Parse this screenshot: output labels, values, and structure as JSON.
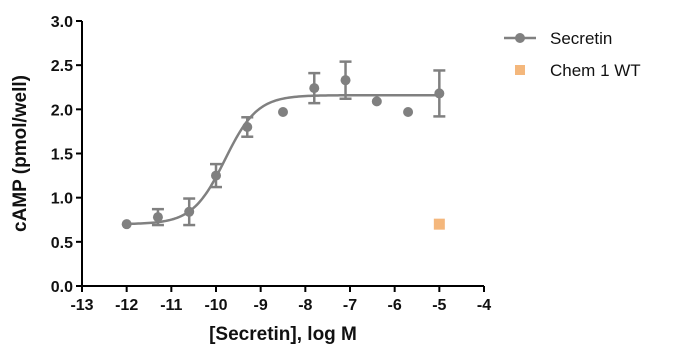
{
  "chart_data": {
    "type": "scatter",
    "title": "",
    "xlabel": "[Secretin], log M",
    "ylabel": "cAMP (pmol/well)",
    "xlim": [
      -13,
      -4
    ],
    "ylim": [
      0.0,
      3.0
    ],
    "x_ticks": [
      -13,
      -12,
      -11,
      -10,
      -9,
      -8,
      -7,
      -6,
      -5,
      -4
    ],
    "x_tick_labels": [
      "-13",
      "-12",
      "-11",
      "-10",
      "-9",
      "-8",
      "-7",
      "-6",
      "-5",
      "-4"
    ],
    "y_ticks": [
      0.0,
      0.5,
      1.0,
      1.5,
      2.0,
      2.5,
      3.0
    ],
    "y_tick_labels": [
      "0.0",
      "0.5",
      "1.0",
      "1.5",
      "2.0",
      "2.5",
      "3.0"
    ],
    "grid": false,
    "legend_position": "top-right",
    "series": [
      {
        "name": "Secretin",
        "marker": "circle",
        "color": "#808080",
        "fit": "sigmoidal dose-response",
        "x": [
          -12,
          -11.3,
          -10.6,
          -10,
          -9.3,
          -8.5,
          -7.8,
          -7.1,
          -6.4,
          -5.7,
          -5
        ],
        "y": [
          0.7,
          0.78,
          0.84,
          1.25,
          1.8,
          1.97,
          2.24,
          2.33,
          2.09,
          1.97,
          2.18
        ],
        "error": [
          0.0,
          0.09,
          0.15,
          0.13,
          0.11,
          0.0,
          0.17,
          0.21,
          0.0,
          0.0,
          0.26
        ]
      },
      {
        "name": "Chem 1 WT",
        "marker": "square",
        "color": "#f4b77c",
        "x": [
          -5
        ],
        "y": [
          0.7
        ]
      }
    ]
  }
}
